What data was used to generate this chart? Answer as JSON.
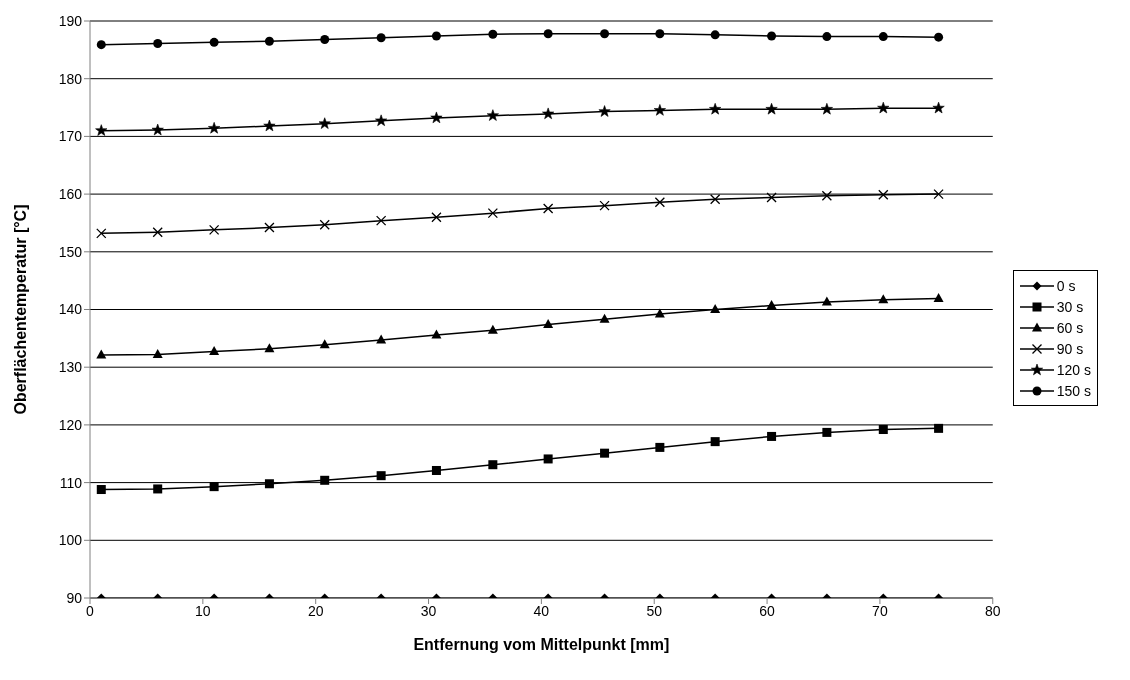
{
  "chart_data": {
    "type": "line",
    "xlabel": "Entfernung vom Mittelpunkt [mm]",
    "ylabel": "Oberflächentemperatur [°C]",
    "x": [
      1,
      6,
      11,
      15.9,
      20.8,
      25.8,
      30.7,
      35.7,
      40.6,
      45.6,
      50.5,
      55.4,
      60.4,
      65.3,
      70.3,
      75.2
    ],
    "series": [
      {
        "name": "0 s",
        "color": "#000000",
        "marker": "diamond",
        "values": [
          90,
          90,
          90,
          90,
          90,
          90,
          90,
          90,
          90,
          90,
          90,
          90,
          90,
          90,
          90,
          90
        ]
      },
      {
        "name": "30 s",
        "color": "#000000",
        "marker": "square",
        "values": [
          108.8,
          108.9,
          109.3,
          109.8,
          110.4,
          111.2,
          112.1,
          113.1,
          114.1,
          115.1,
          116.1,
          117.1,
          118.0,
          118.7,
          119.2,
          119.4
        ]
      },
      {
        "name": "60 s",
        "color": "#000000",
        "marker": "triangle",
        "values": [
          132.1,
          132.2,
          132.7,
          133.2,
          133.9,
          134.7,
          135.6,
          136.4,
          137.4,
          138.3,
          139.2,
          140.0,
          140.7,
          141.3,
          141.7,
          141.9
        ]
      },
      {
        "name": "90 s",
        "color": "#000000",
        "marker": "cross",
        "values": [
          153.2,
          153.4,
          153.8,
          154.2,
          154.7,
          155.4,
          156.0,
          156.7,
          157.5,
          158.0,
          158.6,
          159.1,
          159.4,
          159.7,
          159.9,
          160.0
        ]
      },
      {
        "name": "120 s",
        "color": "#000000",
        "marker": "star",
        "values": [
          171.0,
          171.1,
          171.4,
          171.8,
          172.2,
          172.7,
          173.2,
          173.6,
          173.9,
          174.3,
          174.5,
          174.7,
          174.7,
          174.7,
          174.9,
          174.9
        ]
      },
      {
        "name": "150 s",
        "color": "#000000",
        "marker": "circle",
        "values": [
          185.9,
          186.1,
          186.3,
          186.5,
          186.8,
          187.1,
          187.4,
          187.7,
          187.8,
          187.8,
          187.8,
          187.6,
          187.4,
          187.3,
          187.3,
          187.2
        ]
      }
    ],
    "xlim": [
      0,
      80
    ],
    "xticks": [
      0,
      10,
      20,
      30,
      40,
      50,
      60,
      70,
      80
    ],
    "ylim": [
      90,
      190
    ],
    "yticks": [
      90,
      100,
      110,
      120,
      130,
      140,
      150,
      160,
      170,
      180,
      190
    ],
    "grid": "y",
    "legend": "right",
    "line_style": "solid"
  }
}
